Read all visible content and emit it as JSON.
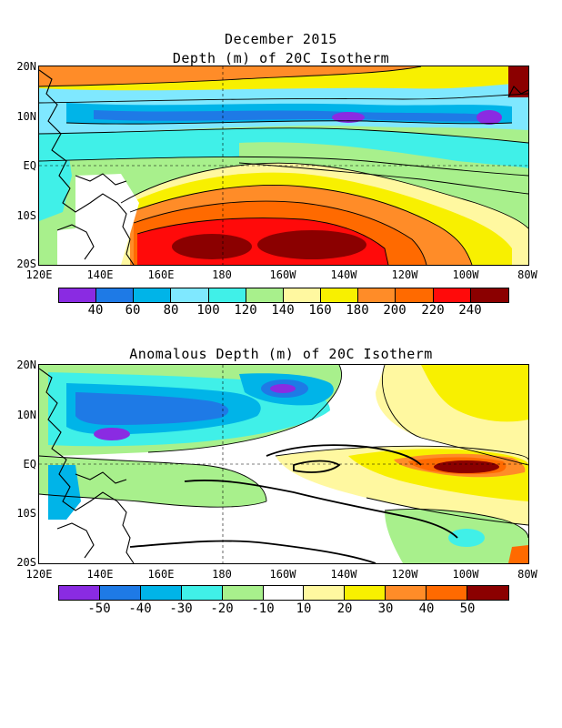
{
  "top_panel": {
    "title_line1": "December 2015",
    "title_line2": "Depth (m) of 20C Isotherm",
    "x_ticks": [
      "120E",
      "140E",
      "160E",
      "180",
      "160W",
      "140W",
      "120W",
      "100W",
      "80W"
    ],
    "y_ticks": [
      "20N",
      "10N",
      "EQ",
      "10S",
      "20S"
    ],
    "colorbar_colors": [
      "#8a2be2",
      "#1e7ae6",
      "#00b4e8",
      "#7fe8ff",
      "#40f0e8",
      "#a8f08c",
      "#fff8a0",
      "#f8f000",
      "#ff8c28",
      "#ff6a00",
      "#ff0a0a",
      "#8b0000"
    ],
    "colorbar_labels": [
      "40",
      "60",
      "80",
      "100",
      "120",
      "140",
      "160",
      "180",
      "200",
      "220",
      "240"
    ]
  },
  "bottom_panel": {
    "title": "Anomalous Depth (m) of 20C Isotherm",
    "x_ticks": [
      "120E",
      "140E",
      "160E",
      "180",
      "160W",
      "140W",
      "120W",
      "100W",
      "80W"
    ],
    "y_ticks": [
      "20N",
      "10N",
      "EQ",
      "10S",
      "20S"
    ],
    "colorbar_colors": [
      "#8a2be2",
      "#1e7ae6",
      "#00b4e8",
      "#40f0e8",
      "#a8f08c",
      "#ffffff",
      "#fff8a0",
      "#f8f000",
      "#ff8c28",
      "#ff6a00",
      "#8b0000"
    ],
    "colorbar_labels": [
      "-50",
      "-40",
      "-30",
      "-20",
      "-10",
      "10",
      "20",
      "30",
      "40",
      "50"
    ]
  }
}
